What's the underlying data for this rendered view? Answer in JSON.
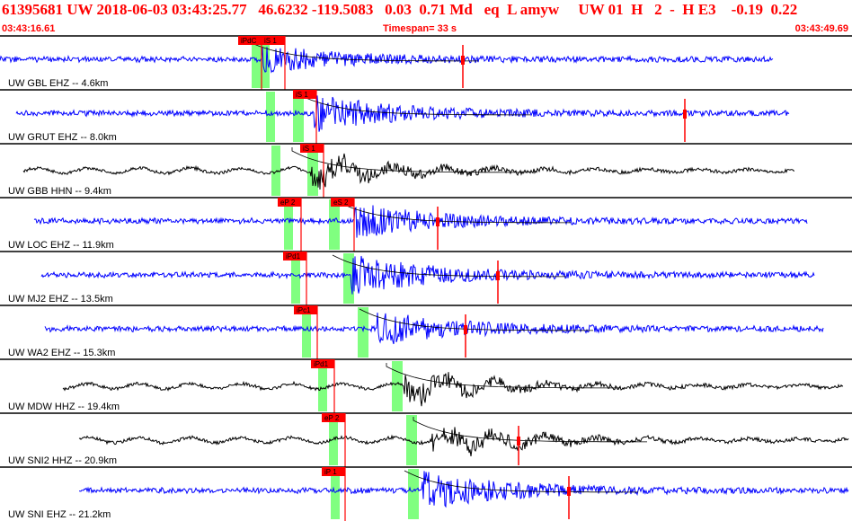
{
  "header": {
    "event_line": "61395681 UW 2018-06-03 03:43:25.77   46.6232 -119.5083   0.03  0.71 Md   eq  L amyw     UW 01  H   2  -  H E3    -0.19  0.22",
    "start_time": "03:43:16.61",
    "timespan_label": "Timespan=  33 s",
    "end_time": "03:43:49.69"
  },
  "colors": {
    "header_text": "#ff0000",
    "pick_box": "#ff0000",
    "pick_window": "#80ff80",
    "trace_blue": "#0000ff",
    "trace_black": "#000000",
    "coda_curve": "#000000",
    "separator": "#000000"
  },
  "traces": [
    {
      "label": "UW GBL EHZ -- 4.6km",
      "color": "#0000ff",
      "p_pick": "iPdC",
      "s_pick": "iS 1",
      "amp": 0.55
    },
    {
      "label": "UW GRUT EHZ -- 8.0km",
      "color": "#0000ff",
      "p_pick": "",
      "s_pick": "iS 1",
      "amp": 0.75
    },
    {
      "label": "UW GBB HHN -- 9.4km",
      "color": "#000000",
      "p_pick": "",
      "s_pick": "iS 1",
      "amp": 0.9
    },
    {
      "label": "UW LOC EHZ -- 11.9km",
      "color": "#0000ff",
      "p_pick": "eP 2",
      "s_pick": "eS 2",
      "amp": 0.7
    },
    {
      "label": "UW MJ2 EHZ -- 13.5km",
      "color": "#0000ff",
      "p_pick": "iPd1",
      "s_pick": "",
      "amp": 0.8
    },
    {
      "label": "UW WA2 EHZ -- 15.3km",
      "color": "#0000ff",
      "p_pick": "iPc1",
      "s_pick": "",
      "amp": 0.7
    },
    {
      "label": "UW MDW HHZ -- 19.4km",
      "color": "#000000",
      "p_pick": "iPd1",
      "s_pick": "",
      "amp": 0.85
    },
    {
      "label": "UW SNI2 HHZ -- 20.9km",
      "color": "#000000",
      "p_pick": "eP 2",
      "s_pick": "",
      "amp": 0.9
    },
    {
      "label": "UW SNI EHZ -- 21.2km",
      "color": "#0000ff",
      "p_pick": "iP 1",
      "s_pick": "",
      "amp": 0.8
    }
  ]
}
